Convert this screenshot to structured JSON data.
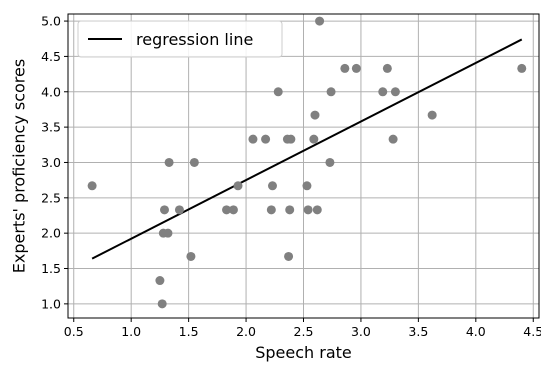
{
  "chart_data": {
    "type": "scatter",
    "xlabel": "Speech rate",
    "ylabel": "Experts' proficiency scores",
    "xlim": [
      0.45,
      4.55
    ],
    "ylim": [
      0.8,
      5.1
    ],
    "xticks": [
      "0.5",
      "1.0",
      "1.5",
      "2.0",
      "2.5",
      "3.0",
      "3.5",
      "4.0",
      "4.5"
    ],
    "yticks": [
      "1.0",
      "1.5",
      "2.0",
      "2.5",
      "3.0",
      "3.5",
      "4.0",
      "4.5",
      "5.0"
    ],
    "grid": true,
    "legend": {
      "position": "top-left",
      "label": "regression line"
    },
    "colors": {
      "points": "#808080",
      "line": "#000000",
      "grid": "#b0b0b0"
    },
    "regression_line": {
      "x": [
        0.66,
        4.4
      ],
      "y": [
        1.64,
        4.74
      ]
    },
    "points": [
      {
        "x": 0.66,
        "y": 2.67
      },
      {
        "x": 1.25,
        "y": 1.33
      },
      {
        "x": 1.27,
        "y": 1.0
      },
      {
        "x": 1.28,
        "y": 2.0
      },
      {
        "x": 1.29,
        "y": 2.33
      },
      {
        "x": 1.32,
        "y": 2.0
      },
      {
        "x": 1.33,
        "y": 3.0
      },
      {
        "x": 1.42,
        "y": 2.33
      },
      {
        "x": 1.52,
        "y": 1.67
      },
      {
        "x": 1.55,
        "y": 3.0
      },
      {
        "x": 1.83,
        "y": 2.33
      },
      {
        "x": 1.89,
        "y": 2.33
      },
      {
        "x": 1.93,
        "y": 2.67
      },
      {
        "x": 2.06,
        "y": 3.33
      },
      {
        "x": 2.17,
        "y": 3.33
      },
      {
        "x": 2.22,
        "y": 2.33
      },
      {
        "x": 2.23,
        "y": 2.67
      },
      {
        "x": 2.28,
        "y": 4.0
      },
      {
        "x": 2.36,
        "y": 3.33
      },
      {
        "x": 2.37,
        "y": 1.67
      },
      {
        "x": 2.38,
        "y": 2.33
      },
      {
        "x": 2.39,
        "y": 3.33
      },
      {
        "x": 2.53,
        "y": 2.67
      },
      {
        "x": 2.54,
        "y": 2.33
      },
      {
        "x": 2.59,
        "y": 3.33
      },
      {
        "x": 2.6,
        "y": 3.67
      },
      {
        "x": 2.62,
        "y": 2.33
      },
      {
        "x": 2.64,
        "y": 5.0
      },
      {
        "x": 2.73,
        "y": 3.0
      },
      {
        "x": 2.74,
        "y": 4.0
      },
      {
        "x": 2.86,
        "y": 4.33
      },
      {
        "x": 2.96,
        "y": 4.33
      },
      {
        "x": 3.19,
        "y": 4.0
      },
      {
        "x": 3.23,
        "y": 4.33
      },
      {
        "x": 3.28,
        "y": 3.33
      },
      {
        "x": 3.3,
        "y": 4.0
      },
      {
        "x": 3.62,
        "y": 3.67
      },
      {
        "x": 4.4,
        "y": 4.33
      }
    ]
  }
}
